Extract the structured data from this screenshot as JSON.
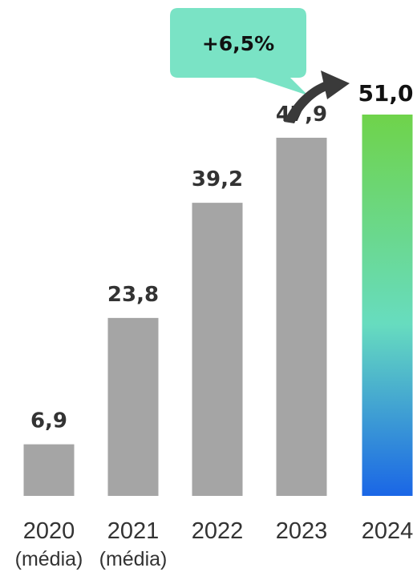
{
  "chart_data": {
    "type": "bar",
    "categories": [
      "2020",
      "2021",
      "2022",
      "2023",
      "2024"
    ],
    "category_sublabels": [
      "(média)",
      "(média)",
      "",
      "",
      ""
    ],
    "values": [
      6.9,
      23.8,
      39.2,
      47.9,
      51.0
    ],
    "value_labels": [
      "6,9",
      "23,8",
      "39,2",
      "47,9",
      "51,0"
    ],
    "ylim": [
      0,
      51.0
    ],
    "grid": false,
    "legend": "none",
    "annotation": {
      "text": "+6,5%",
      "from_category": "2023",
      "to_category": "2024"
    },
    "colors": {
      "bar": "#a5a5a5",
      "highlight_gradient_top": "#6fd34a",
      "highlight_gradient_mid": "#67dcbf",
      "highlight_gradient_bottom": "#1a66e6",
      "bubble": "#7ae3c5",
      "arrow": "#3a3a3a",
      "text": "#333333"
    }
  }
}
